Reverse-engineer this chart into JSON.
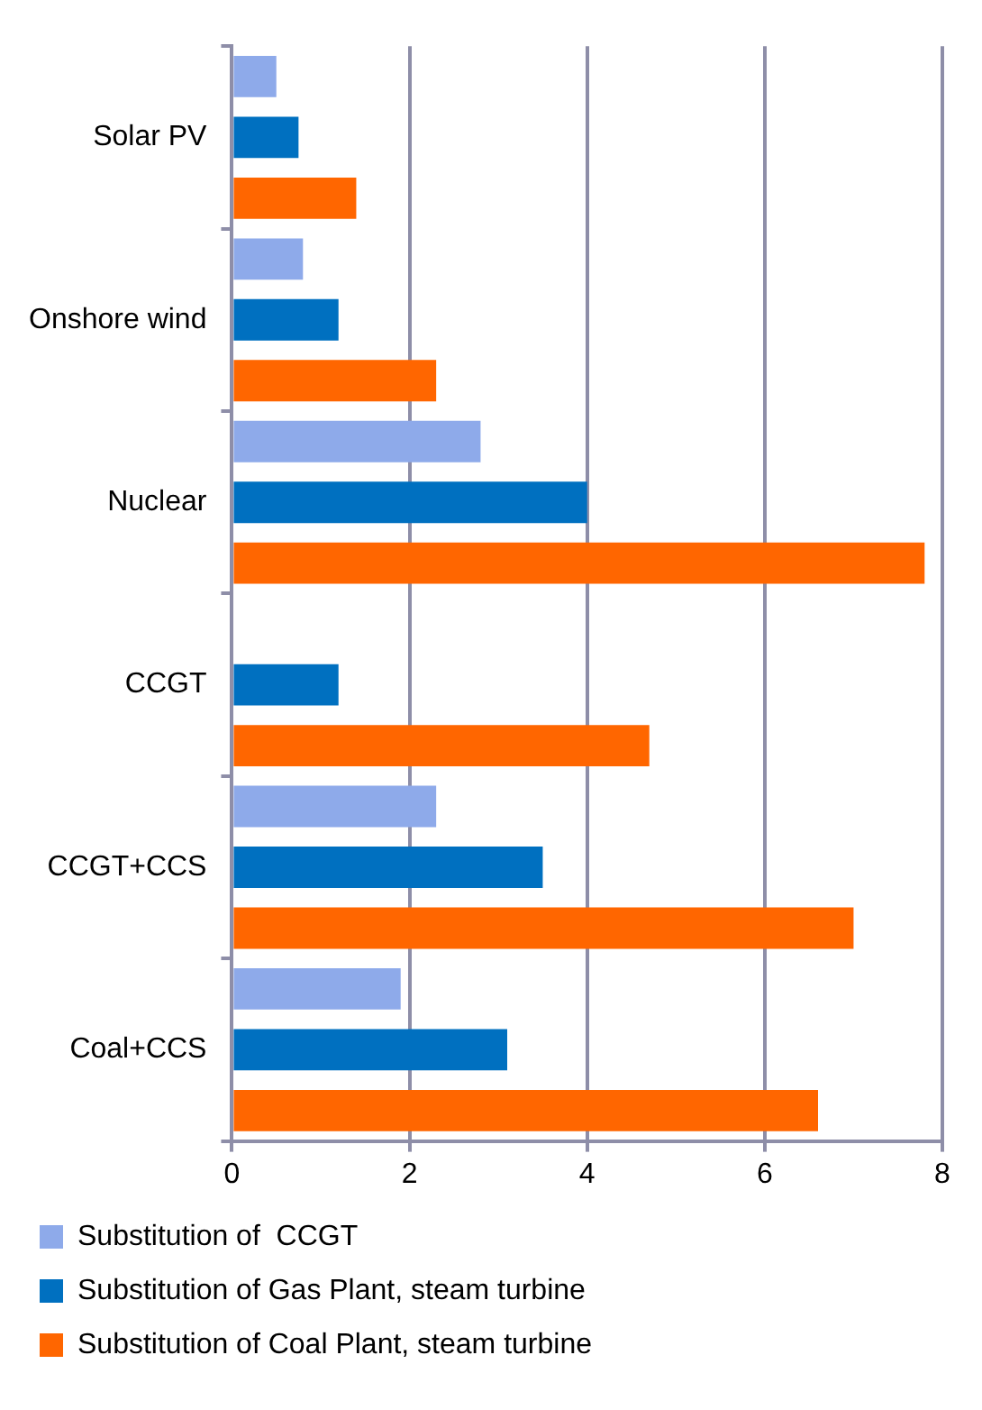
{
  "chart_data": {
    "type": "bar",
    "orientation": "horizontal",
    "categories": [
      "Solar PV",
      "Onshore wind",
      "Nuclear",
      "CCGT",
      "CCGT+CCS",
      "Coal+CCS"
    ],
    "series": [
      {
        "name": "Substitution of  CCGT",
        "color": "#8eaaea",
        "values": [
          0.5,
          0.8,
          2.8,
          null,
          2.3,
          1.9
        ]
      },
      {
        "name": "Substitution of Gas Plant, steam turbine",
        "color": "#0070c0",
        "values": [
          0.75,
          1.2,
          4,
          1.2,
          3.5,
          3.1
        ]
      },
      {
        "name": "Substitution of Coal Plant, steam turbine",
        "color": "#ff6600",
        "values": [
          1.4,
          2.3,
          7.8,
          4.7,
          7,
          6.6
        ]
      }
    ],
    "xlim": [
      0,
      8
    ],
    "xticks": [
      0,
      2,
      4,
      6,
      8
    ],
    "grid": "x",
    "legend": "bottom"
  }
}
